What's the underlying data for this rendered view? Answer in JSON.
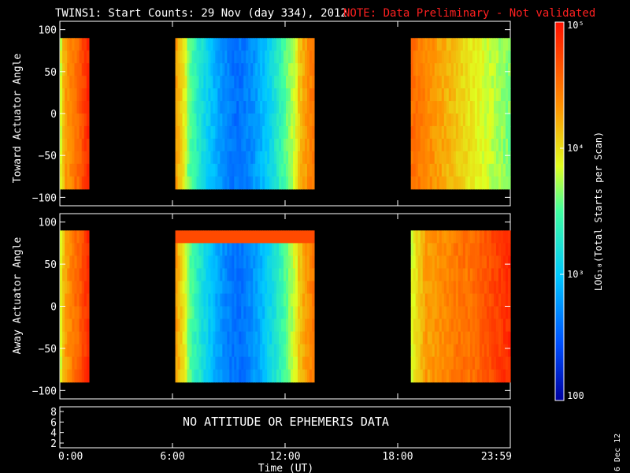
{
  "header": {
    "title": "TWINS1: Start Counts: 29 Nov (day 334), 2012",
    "note": "NOTE: Data Preliminary - Not validated",
    "note_color": "#ff0000"
  },
  "footer": {
    "date_stamp": "6 Dec 12"
  },
  "chart_data": [
    {
      "type": "heatmap",
      "panel": "top",
      "ylabel": "Toward Actuator Angle",
      "yticks": [
        "100",
        "50",
        "0",
        "−50",
        "−100"
      ],
      "ylim": [
        -110,
        110
      ],
      "angle_range": [
        -90,
        90
      ],
      "xlim_hours": [
        0,
        24
      ],
      "data_intervals": [
        {
          "start_hour": 0.0,
          "end_hour": 1.55,
          "profile": "hot"
        },
        {
          "start_hour": 6.15,
          "end_hour": 13.55,
          "profile": "cool-center"
        },
        {
          "start_hour": 18.7,
          "end_hour": 24.0,
          "profile": "warm"
        }
      ]
    },
    {
      "type": "heatmap",
      "panel": "middle",
      "ylabel": "Away Actuator Angle",
      "yticks": [
        "100",
        "50",
        "0",
        "−50",
        "−100"
      ],
      "ylim": [
        -110,
        110
      ],
      "angle_range": [
        -90,
        90
      ],
      "xlim_hours": [
        0,
        24
      ],
      "data_intervals": [
        {
          "start_hour": 0.0,
          "end_hour": 1.55,
          "profile": "hot"
        },
        {
          "start_hour": 6.15,
          "end_hour": 13.55,
          "profile": "cool-center"
        },
        {
          "start_hour": 18.7,
          "end_hour": 24.0,
          "profile": "hot"
        }
      ]
    },
    {
      "type": "table",
      "panel": "bottom",
      "message": "NO ATTITUDE OR EPHEMERIS DATA",
      "yticks": [
        "8",
        "6",
        "4",
        "2"
      ]
    }
  ],
  "xaxis": {
    "label": "Time (UT)",
    "ticks": [
      {
        "label": "0:00",
        "hour": 0
      },
      {
        "label": "6:00",
        "hour": 6
      },
      {
        "label": "12:00",
        "hour": 12
      },
      {
        "label": "18:00",
        "hour": 18
      },
      {
        "label": "23:59",
        "hour": 24
      }
    ]
  },
  "colorbar": {
    "label": "LOG₁₀(Total Starts per Scan)",
    "scale": "log",
    "range": [
      100,
      100000
    ],
    "ticks": [
      {
        "label": "10⁵",
        "value": 100000
      },
      {
        "label": "10⁴",
        "value": 10000
      },
      {
        "label": "10³",
        "value": 1000
      },
      {
        "label": "100",
        "value": 100
      }
    ]
  }
}
